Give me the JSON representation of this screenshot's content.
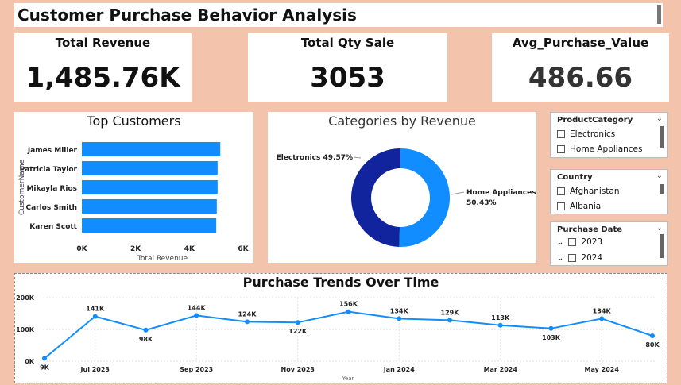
{
  "title": "Customer Purchase Behavior Analysis",
  "kpis": {
    "revenue": {
      "label": "Total Revenue",
      "value": "1,485.76K"
    },
    "qty": {
      "label": "Total Qty Sale",
      "value": "3053"
    },
    "avg": {
      "label": "Avg_Purchase_Value",
      "value": "486.66"
    }
  },
  "slicers": {
    "category": {
      "title": "ProductCategory",
      "options": [
        "Electronics",
        "Home Appliances"
      ]
    },
    "country": {
      "title": "Country",
      "options": [
        "Afghanistan",
        "Albania"
      ]
    },
    "date": {
      "title": "Purchase Date",
      "options": [
        "2023",
        "2024"
      ]
    }
  },
  "colors": {
    "bar": "#118dff",
    "donut_dark": "#12239e",
    "donut_light": "#118dff",
    "background": "#f4c3ab"
  },
  "chart_data": [
    {
      "type": "bar",
      "title": "Top Customers",
      "orientation": "horizontal",
      "categories": [
        "James Miller",
        "Patricia Taylor",
        "Mikayla Rios",
        "Carlos Smith",
        "Karen Scott"
      ],
      "values": [
        5150,
        5050,
        5050,
        5020,
        5000
      ],
      "xlabel": "Total Revenue",
      "ylabel": "CustomerName",
      "xlim": [
        0,
        6000
      ],
      "xticks": [
        "0K",
        "2K",
        "4K",
        "6K"
      ]
    },
    {
      "type": "pie",
      "donut": true,
      "title": "Categories by Revenue",
      "categories": [
        "Electronics",
        "Home Appliances"
      ],
      "values": [
        49.57,
        50.43
      ],
      "labels": [
        "Electronics 49.57%",
        "Home Appliances",
        "50.43%"
      ]
    },
    {
      "type": "line",
      "title": "Purchase Trends Over Time",
      "xlabel": "Year",
      "x": [
        "2023-06",
        "2023-07",
        "2023-08",
        "2023-09",
        "2023-10",
        "2023-11",
        "2023-12",
        "2024-01",
        "2024-02",
        "2024-03",
        "2024-04",
        "2024-05",
        "2024-06"
      ],
      "values": [
        9,
        141,
        98,
        144,
        124,
        122,
        156,
        134,
        129,
        113,
        103,
        134,
        80
      ],
      "data_labels": [
        "9K",
        "141K",
        "98K",
        "144K",
        "124K",
        "122K",
        "156K",
        "134K",
        "129K",
        "113K",
        "103K",
        "134K",
        "80K"
      ],
      "xticks": [
        "Jul 2023",
        "Sep 2023",
        "Nov 2023",
        "Jan 2024",
        "Mar 2024",
        "May 2024"
      ],
      "yticks": [
        "200K",
        "100K",
        "0K"
      ],
      "ylim": [
        0,
        200
      ]
    }
  ]
}
